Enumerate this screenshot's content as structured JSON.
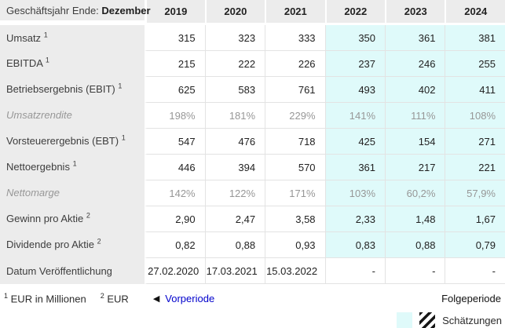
{
  "table": {
    "header": {
      "label_prefix": "Geschäftsjahr Ende:",
      "label_bold": "Dezember",
      "years": [
        "2019",
        "2020",
        "2021",
        "2022",
        "2023",
        "2024"
      ]
    },
    "rows": [
      {
        "label": "Umsatz",
        "sup": "1",
        "italic": false,
        "estimate_shading": true,
        "values": [
          "315",
          "323",
          "333",
          "350",
          "361",
          "381"
        ]
      },
      {
        "label": "EBITDA",
        "sup": "1",
        "italic": false,
        "estimate_shading": true,
        "values": [
          "215",
          "222",
          "226",
          "237",
          "246",
          "255"
        ]
      },
      {
        "label": "Betriebsergebnis (EBIT)",
        "sup": "1",
        "italic": false,
        "estimate_shading": true,
        "values": [
          "625",
          "583",
          "761",
          "493",
          "402",
          "411"
        ]
      },
      {
        "label": "Umsatzrendite",
        "sup": "",
        "italic": true,
        "estimate_shading": true,
        "values": [
          "198%",
          "181%",
          "229%",
          "141%",
          "111%",
          "108%"
        ]
      },
      {
        "label": "Vorsteuerergebnis (EBT)",
        "sup": "1",
        "italic": false,
        "estimate_shading": true,
        "values": [
          "547",
          "476",
          "718",
          "425",
          "154",
          "271"
        ]
      },
      {
        "label": "Nettoergebnis",
        "sup": "1",
        "italic": false,
        "estimate_shading": true,
        "values": [
          "446",
          "394",
          "570",
          "361",
          "217",
          "221"
        ]
      },
      {
        "label": "Nettomarge",
        "sup": "",
        "italic": true,
        "estimate_shading": true,
        "values": [
          "142%",
          "122%",
          "171%",
          "103%",
          "60,2%",
          "57,9%"
        ]
      },
      {
        "label": "Gewinn pro Aktie",
        "sup": "2",
        "italic": false,
        "estimate_shading": true,
        "values": [
          "2,90",
          "2,47",
          "3,58",
          "2,33",
          "1,48",
          "1,67"
        ]
      },
      {
        "label": "Dividende pro Aktie",
        "sup": "2",
        "italic": false,
        "estimate_shading": true,
        "values": [
          "0,82",
          "0,88",
          "0,93",
          "0,83",
          "0,88",
          "0,79"
        ]
      },
      {
        "label": "Datum Veröffentlichung",
        "sup": "",
        "italic": false,
        "estimate_shading": false,
        "values": [
          "27.02.2020",
          "17.03.2021",
          "15.03.2022",
          "-",
          "-",
          "-"
        ]
      }
    ],
    "estimate_column_start_index": 3
  },
  "footer": {
    "footnote1_sup": "1",
    "footnote1_text": "EUR in Millionen",
    "footnote2_sup": "2",
    "footnote2_text": "EUR",
    "prev_arrow": "◀",
    "prev_label": "Vorperiode",
    "next_label": "Folgeperiode",
    "legend_label": "Schätzungen"
  },
  "colors": {
    "estimate_cell_bg": "#dffafa",
    "label_column_bg": "#ececec",
    "grid_border": "#e3e3e3",
    "link_blue": "#0000cc",
    "muted_row_text": "#979797"
  }
}
